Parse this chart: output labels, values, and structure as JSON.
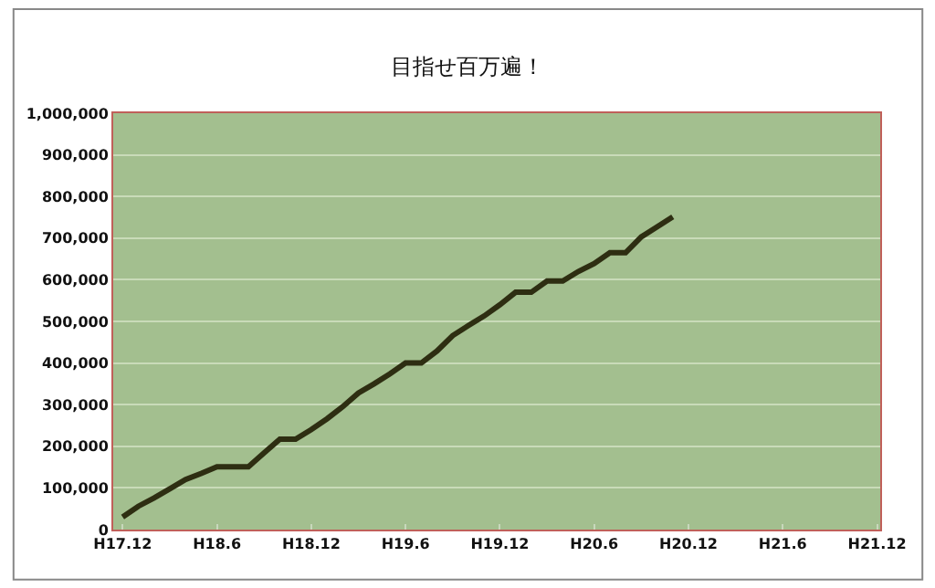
{
  "chart_data": {
    "type": "line",
    "title": "目指せ百万遍！",
    "categories": [
      "H17.12",
      null,
      null,
      null,
      null,
      null,
      "H18.6",
      null,
      null,
      null,
      null,
      null,
      "H18.12",
      null,
      null,
      null,
      null,
      null,
      "H19.6",
      null,
      null,
      null,
      null,
      null,
      "H19.12",
      null,
      null,
      null,
      null,
      null,
      "H20.6",
      null,
      null,
      null,
      null,
      null,
      "H20.12",
      null,
      null,
      null,
      null,
      null,
      "H21.6",
      null,
      null,
      null,
      null,
      null,
      "H21.12"
    ],
    "series": [
      {
        "color": "#2e2e12",
        "values": [
          30000,
          56000,
          76000,
          98000,
          120000,
          135000,
          151000,
          151000,
          151000,
          184000,
          217000,
          217000,
          240000,
          266000,
          295000,
          328000,
          350000,
          374000,
          400000,
          400000,
          429000,
          466000,
          490000,
          513000,
          540000,
          570000,
          570000,
          597000,
          597000,
          620000,
          639000,
          665000,
          665000,
          703000,
          727000,
          751000,
          null,
          null,
          null,
          null,
          null,
          null,
          null,
          null,
          null,
          null,
          null,
          null,
          null
        ]
      }
    ],
    "ylim": [
      0,
      1000000
    ],
    "yticks": [
      0,
      {
        "value": 100000,
        "label": "100,000"
      },
      {
        "value": 200000,
        "label": "200,000"
      },
      {
        "value": 300000,
        "label": "300,000"
      },
      {
        "value": 400000,
        "label": "400,000"
      },
      {
        "value": 500000,
        "label": "500,000"
      },
      {
        "value": 600000,
        "label": "600,000"
      },
      {
        "value": 700000,
        "label": "700,000"
      },
      {
        "value": 800000,
        "label": "800,000"
      },
      {
        "value": 900000,
        "label": "900,000"
      },
      {
        "value": 1000000,
        "label": "1,000,000"
      }
    ],
    "grid": "y",
    "marker": "none",
    "line_style": "solid"
  }
}
